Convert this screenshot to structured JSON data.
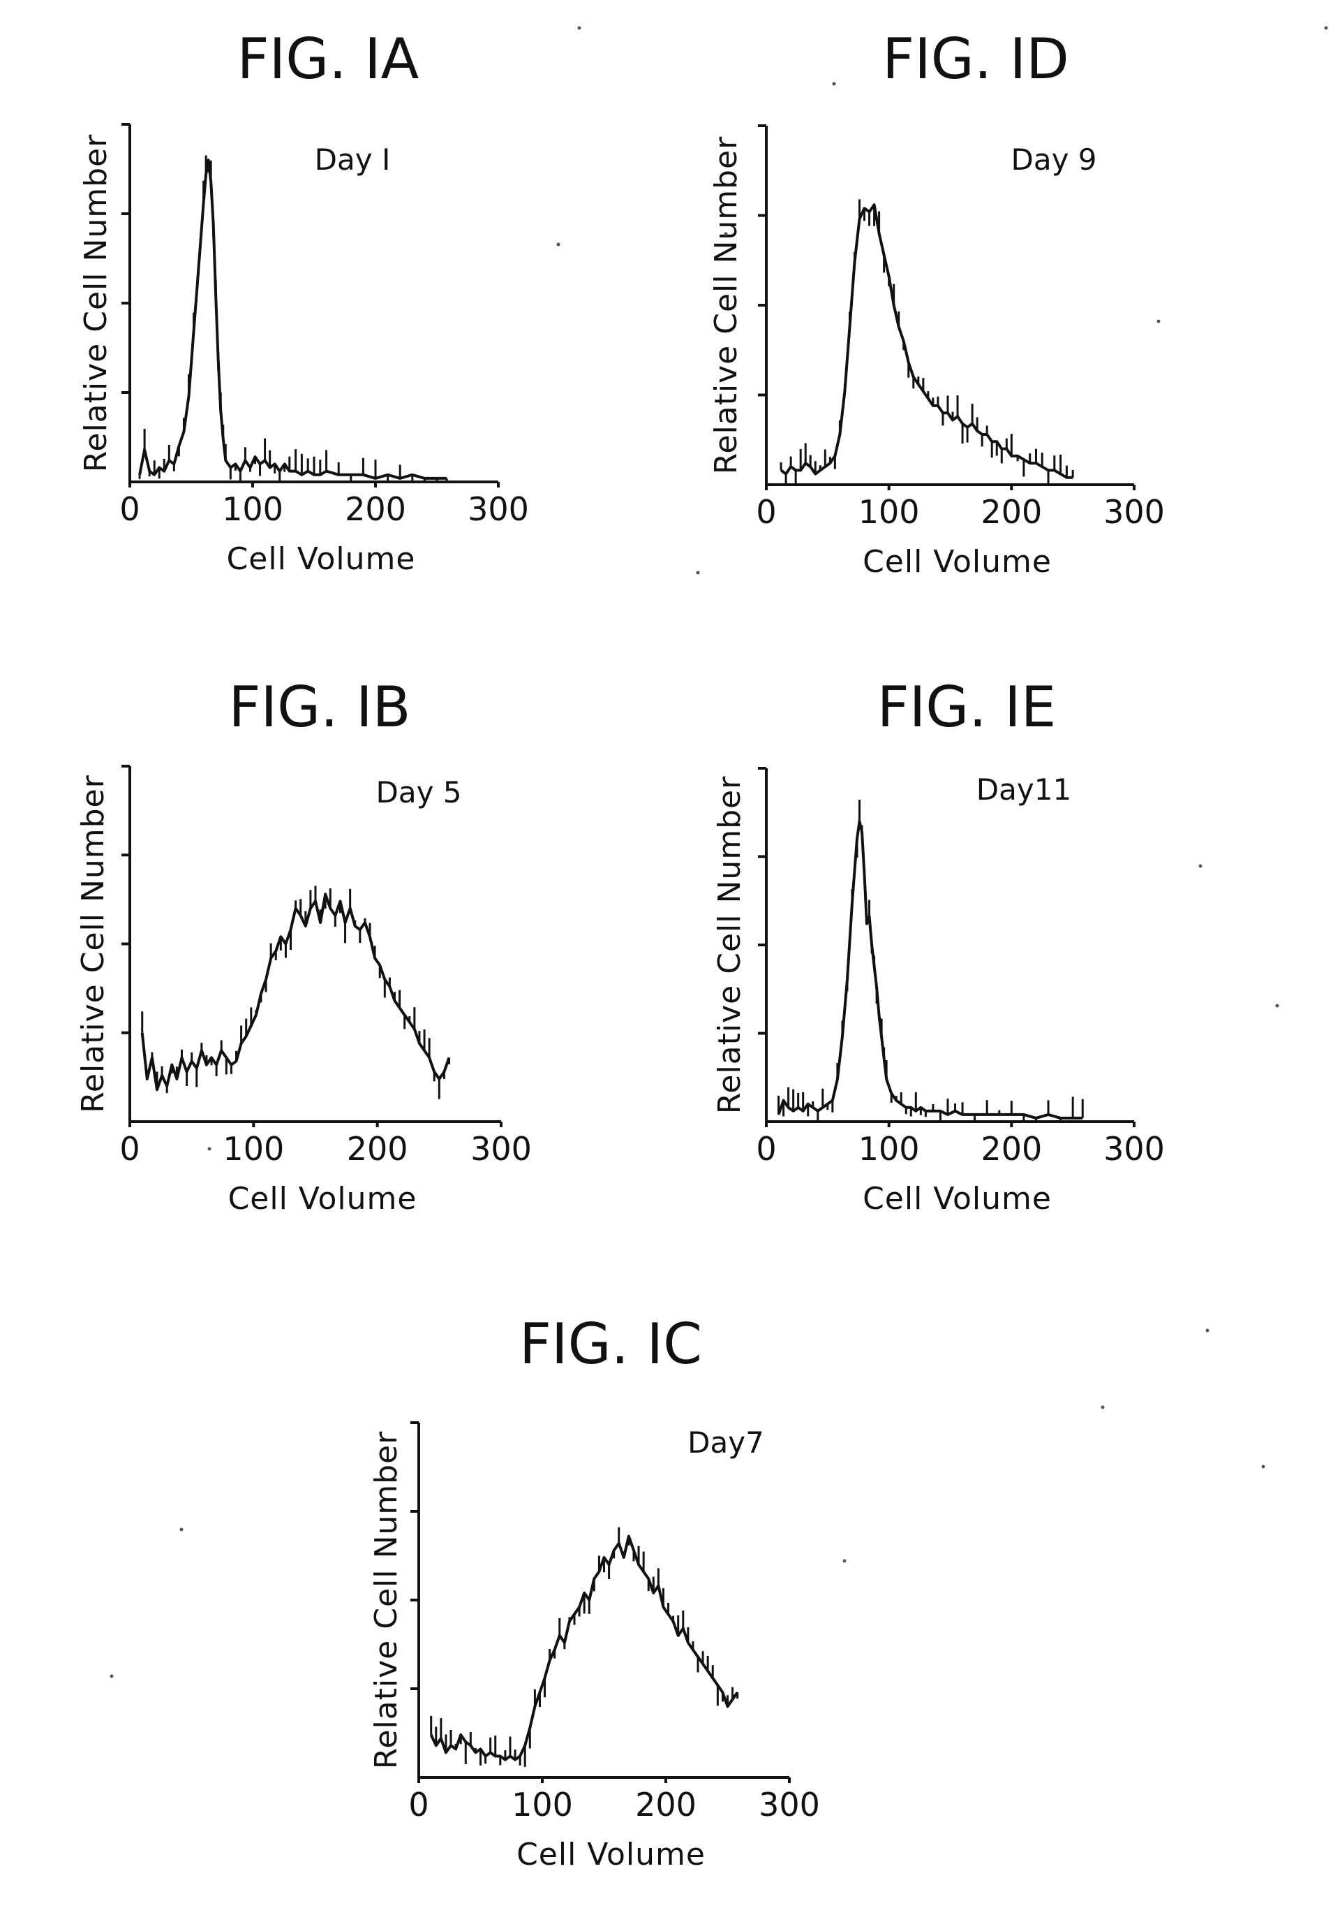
{
  "chart_data": [
    {
      "id": "fig1a",
      "type": "line",
      "title": "FIG. IA",
      "subtitle": "Day I",
      "xlabel": "Cell Volume",
      "ylabel": "Relative Cell Number",
      "xlim": [
        0,
        300
      ],
      "ylim": [
        0,
        100
      ],
      "xticks": [
        0,
        100,
        200,
        300
      ],
      "xtick_labels": [
        "0",
        "100",
        "200",
        "300"
      ],
      "yticks": [
        25,
        50,
        75,
        100
      ],
      "grid": false,
      "series": [
        {
          "x": [
            8,
            12,
            16,
            20,
            24,
            28,
            32,
            36,
            40,
            44,
            48,
            52,
            56,
            60,
            62,
            64,
            66,
            68,
            70,
            72,
            74,
            76,
            78,
            82,
            86,
            90,
            94,
            98,
            102,
            106,
            110,
            114,
            118,
            122,
            126,
            130,
            135,
            140,
            145,
            150,
            155,
            160,
            170,
            180,
            190,
            200,
            210,
            220,
            230,
            240,
            250,
            258
          ],
          "y": [
            2,
            9,
            3,
            2,
            4,
            3,
            6,
            5,
            10,
            14,
            24,
            42,
            60,
            78,
            86,
            90,
            84,
            72,
            52,
            34,
            20,
            12,
            6,
            4,
            5,
            3,
            6,
            4,
            7,
            5,
            6,
            4,
            5,
            3,
            5,
            3,
            3,
            2,
            3,
            2,
            2,
            3,
            2,
            2,
            2,
            1,
            2,
            1,
            2,
            1,
            1,
            1
          ]
        }
      ]
    },
    {
      "id": "fig1b",
      "type": "line",
      "title": "FIG. IB",
      "subtitle": "Day 5",
      "xlabel": "Cell Volume",
      "ylabel": "Relative Cell Number",
      "xlim": [
        0,
        300
      ],
      "ylim": [
        0,
        100
      ],
      "xticks": [
        0,
        100,
        200,
        300
      ],
      "xtick_labels": [
        "0",
        "100",
        "200",
        "300"
      ],
      "yticks": [
        25,
        50,
        75,
        100
      ],
      "grid": false,
      "series": [
        {
          "x": [
            10,
            14,
            18,
            22,
            26,
            30,
            34,
            38,
            42,
            46,
            50,
            54,
            58,
            62,
            66,
            70,
            74,
            78,
            82,
            86,
            90,
            94,
            98,
            102,
            106,
            110,
            114,
            118,
            122,
            126,
            130,
            134,
            138,
            142,
            146,
            150,
            154,
            158,
            162,
            166,
            170,
            174,
            178,
            182,
            186,
            190,
            194,
            198,
            202,
            206,
            210,
            214,
            218,
            222,
            226,
            230,
            234,
            238,
            242,
            246,
            250,
            254,
            258
          ],
          "y": [
            25,
            12,
            18,
            9,
            13,
            10,
            16,
            12,
            18,
            14,
            17,
            15,
            20,
            16,
            18,
            16,
            20,
            18,
            16,
            17,
            22,
            24,
            27,
            30,
            36,
            40,
            46,
            48,
            52,
            50,
            54,
            60,
            58,
            55,
            60,
            62,
            56,
            64,
            60,
            58,
            62,
            56,
            60,
            55,
            54,
            56,
            52,
            46,
            44,
            40,
            38,
            34,
            32,
            30,
            28,
            26,
            22,
            20,
            18,
            14,
            12,
            14,
            18
          ]
        }
      ]
    },
    {
      "id": "fig1c",
      "type": "line",
      "title": "FIG. IC",
      "subtitle": "Day7",
      "xlabel": "Cell Volume",
      "ylabel": "Relative Cell Number",
      "xlim": [
        0,
        300
      ],
      "ylim": [
        0,
        100
      ],
      "xticks": [
        0,
        100,
        200,
        300
      ],
      "xtick_labels": [
        "0",
        "100",
        "200",
        "300"
      ],
      "yticks": [
        25,
        50,
        75,
        100
      ],
      "grid": false,
      "series": [
        {
          "x": [
            10,
            14,
            18,
            22,
            26,
            30,
            34,
            38,
            42,
            46,
            50,
            54,
            58,
            62,
            66,
            70,
            74,
            78,
            82,
            86,
            90,
            94,
            98,
            102,
            106,
            110,
            114,
            118,
            122,
            126,
            130,
            134,
            138,
            142,
            146,
            150,
            154,
            158,
            162,
            166,
            170,
            174,
            178,
            182,
            186,
            190,
            194,
            198,
            202,
            206,
            210,
            214,
            218,
            222,
            226,
            230,
            234,
            238,
            242,
            246,
            250,
            254,
            258
          ],
          "y": [
            12,
            9,
            11,
            7,
            9,
            8,
            12,
            10,
            9,
            7,
            8,
            6,
            7,
            6,
            6,
            5,
            6,
            5,
            6,
            9,
            14,
            20,
            24,
            28,
            33,
            36,
            40,
            38,
            44,
            46,
            48,
            52,
            50,
            56,
            58,
            62,
            60,
            64,
            66,
            62,
            68,
            64,
            60,
            58,
            56,
            52,
            54,
            48,
            46,
            44,
            40,
            42,
            38,
            36,
            34,
            32,
            30,
            28,
            26,
            24,
            20,
            22,
            24
          ]
        }
      ]
    },
    {
      "id": "fig1d",
      "type": "line",
      "title": "FIG. ID",
      "subtitle": "Day 9",
      "xlabel": "Cell Volume",
      "ylabel": "Relative Cell Number",
      "xlim": [
        0,
        300
      ],
      "ylim": [
        0,
        100
      ],
      "xticks": [
        0,
        100,
        200,
        300
      ],
      "xtick_labels": [
        "0",
        "100",
        "200",
        "300"
      ],
      "yticks": [
        25,
        50,
        75,
        100
      ],
      "grid": false,
      "series": [
        {
          "x": [
            12,
            16,
            20,
            24,
            28,
            32,
            36,
            40,
            44,
            48,
            52,
            56,
            60,
            64,
            68,
            72,
            76,
            80,
            84,
            88,
            92,
            96,
            100,
            104,
            108,
            112,
            116,
            120,
            124,
            128,
            132,
            136,
            140,
            144,
            148,
            152,
            156,
            160,
            164,
            168,
            172,
            176,
            180,
            184,
            188,
            192,
            196,
            200,
            205,
            210,
            215,
            220,
            225,
            230,
            235,
            240,
            245,
            250
          ],
          "y": [
            4,
            3,
            5,
            4,
            4,
            6,
            5,
            3,
            4,
            5,
            6,
            8,
            14,
            26,
            44,
            62,
            74,
            77,
            76,
            78,
            70,
            64,
            58,
            50,
            44,
            40,
            34,
            30,
            28,
            26,
            24,
            22,
            22,
            20,
            20,
            18,
            19,
            17,
            16,
            17,
            15,
            14,
            14,
            12,
            12,
            10,
            10,
            8,
            8,
            7,
            6,
            6,
            5,
            4,
            4,
            3,
            2,
            2
          ]
        }
      ]
    },
    {
      "id": "fig1e",
      "type": "line",
      "title": "FIG. IE",
      "subtitle": "Day11",
      "xlabel": "Cell Volume",
      "ylabel": "Relative Cell Number",
      "xlim": [
        0,
        300
      ],
      "ylim": [
        0,
        100
      ],
      "xticks": [
        0,
        100,
        200,
        300
      ],
      "xtick_labels": [
        "0",
        "100",
        "200",
        "300"
      ],
      "yticks": [
        25,
        50,
        75,
        100
      ],
      "grid": false,
      "series": [
        {
          "x": [
            10,
            14,
            18,
            22,
            26,
            30,
            34,
            38,
            42,
            46,
            50,
            54,
            58,
            62,
            66,
            70,
            74,
            76,
            78,
            80,
            82,
            84,
            86,
            88,
            90,
            92,
            94,
            96,
            98,
            102,
            106,
            110,
            114,
            118,
            122,
            126,
            130,
            136,
            142,
            148,
            154,
            160,
            170,
            180,
            190,
            200,
            210,
            220,
            230,
            240,
            250,
            258
          ],
          "y": [
            2,
            6,
            4,
            3,
            4,
            3,
            5,
            4,
            3,
            4,
            5,
            6,
            12,
            24,
            40,
            62,
            80,
            85,
            82,
            70,
            56,
            58,
            50,
            44,
            38,
            30,
            24,
            18,
            12,
            8,
            6,
            5,
            4,
            4,
            3,
            4,
            3,
            3,
            3,
            2,
            3,
            2,
            2,
            2,
            2,
            2,
            2,
            1,
            2,
            1,
            1,
            1
          ]
        }
      ]
    }
  ]
}
